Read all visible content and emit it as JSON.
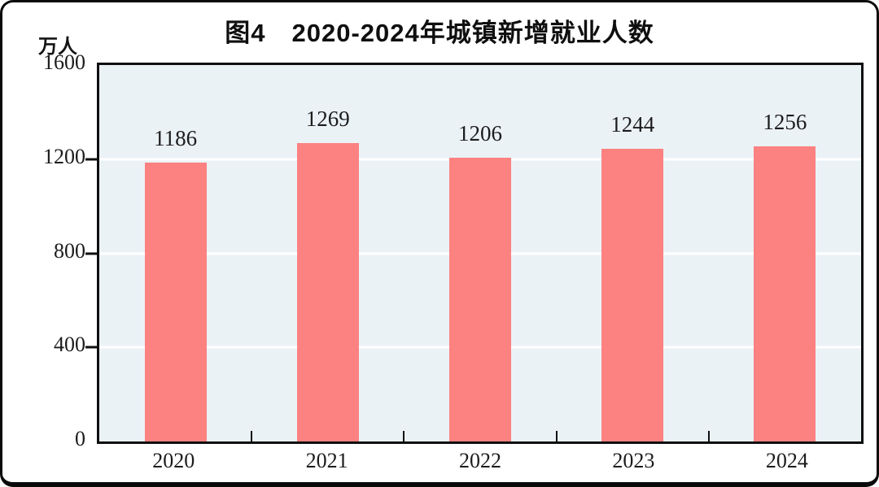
{
  "figure": {
    "title": "图4　2020-2024年城镇新增就业人数",
    "unit_label": "万人"
  },
  "colors": {
    "bar": "#fc8181",
    "plot_background": "#ebf2f6",
    "gridline": "#ffffff",
    "axis": "#0f0f0f",
    "text": "#1c1c1c",
    "frame_border": "#0a0a0a"
  },
  "chart_data": {
    "type": "bar",
    "title": "图4　2020-2024年城镇新增就业人数",
    "unit": "万人",
    "categories": [
      "2020",
      "2021",
      "2022",
      "2023",
      "2024"
    ],
    "values": [
      1186,
      1269,
      1206,
      1244,
      1256
    ],
    "xlabel": "",
    "ylabel": "万人",
    "ylim": [
      0,
      1600
    ],
    "yticks": [
      0,
      400,
      800,
      1200,
      1600
    ],
    "grid": true,
    "gridline_levels": [
      400,
      800,
      1200
    ],
    "legend": "none",
    "data_labels": true
  }
}
